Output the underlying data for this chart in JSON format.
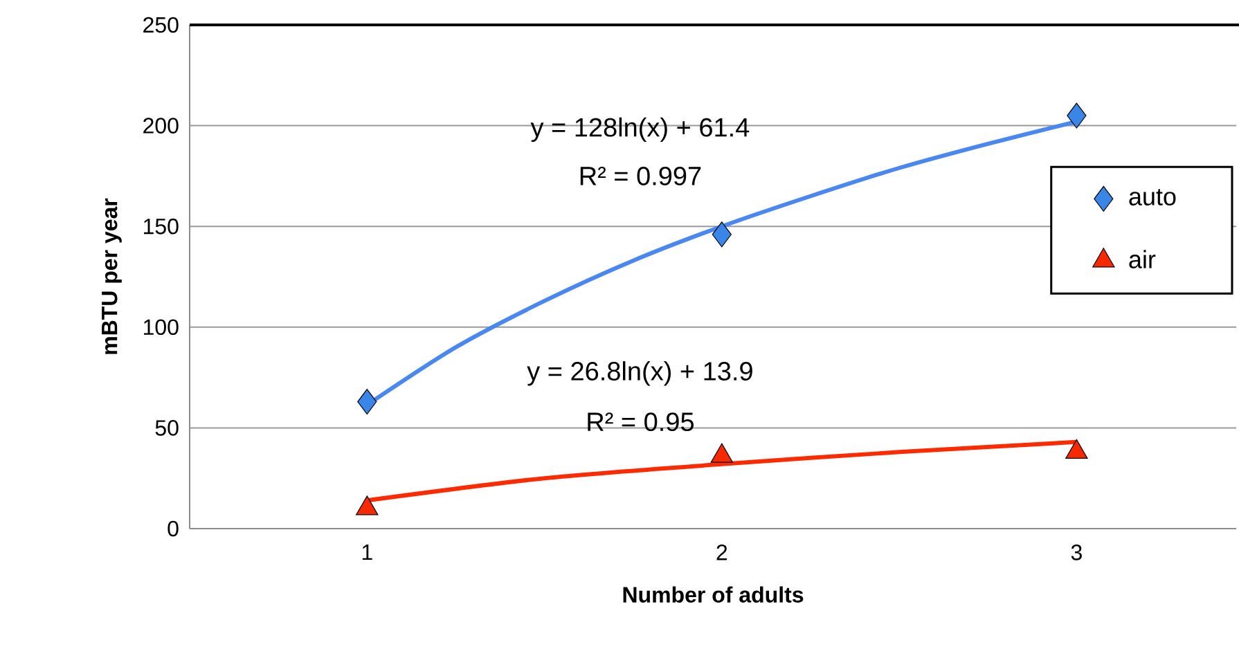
{
  "chart_data": {
    "type": "scatter",
    "xlabel": "Number of adults",
    "ylabel": "mBTU per year",
    "xlim": [
      0.5,
      3.45
    ],
    "xticks": [
      1,
      2,
      3
    ],
    "ylim": [
      0,
      250
    ],
    "yticks": [
      0,
      50,
      100,
      150,
      200,
      250
    ],
    "grid": "y",
    "legend": "right",
    "annotations": [
      "y = 128ln(x) + 61.4",
      "R² = 0.997",
      "y = 26.8ln(x) + 13.9",
      "R² = 0.95"
    ],
    "series": [
      {
        "name": "auto",
        "marker": "diamond",
        "color": "#3a86e8",
        "x": [
          1,
          2,
          3
        ],
        "values": [
          63,
          146,
          205
        ]
      },
      {
        "name": "air",
        "marker": "triangle",
        "color": "#f52a00",
        "x": [
          1,
          2,
          3
        ],
        "values": [
          10,
          36,
          38
        ]
      },
      {
        "type": "line",
        "marker": "none",
        "color": "#4a88f0",
        "x": [
          1,
          1.25,
          1.5,
          1.75,
          2,
          2.25,
          2.5,
          2.75,
          3
        ],
        "values": [
          61.4,
          90,
          113,
          133,
          150,
          165,
          179,
          191,
          202
        ]
      },
      {
        "type": "line",
        "marker": "none",
        "color": "#ff2a00",
        "x": [
          1,
          1.5,
          2,
          2.5,
          3
        ],
        "values": [
          14,
          25,
          32,
          38,
          43
        ]
      }
    ]
  }
}
